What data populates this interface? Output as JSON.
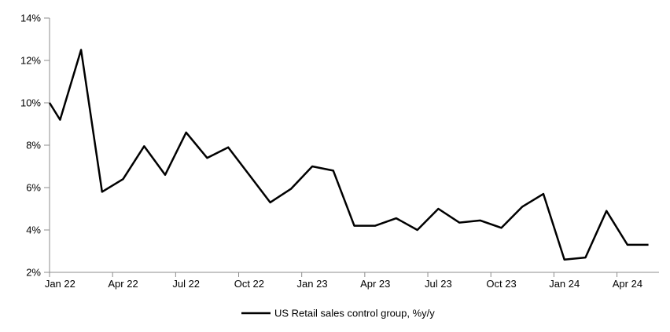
{
  "chart_data": {
    "type": "line",
    "title": "",
    "legend_position": "bottom-center",
    "grid": false,
    "axis_color": "#8c8c8c",
    "text_color": "#000000",
    "ylim": [
      2,
      14
    ],
    "ytick_step": 2,
    "ytick_labels": [
      "2%",
      "4%",
      "6%",
      "8%",
      "10%",
      "12%",
      "14%"
    ],
    "xtick_labels": [
      "Jan 22",
      "Apr 22",
      "Jul 22",
      "Oct 22",
      "Jan 23",
      "Apr 23",
      "Jul 23",
      "Oct 23",
      "Jan 24",
      "Apr 24"
    ],
    "xtick_every_months": 3,
    "x": [
      "Jan 22",
      "Feb 22",
      "Mar 22",
      "Apr 22",
      "May 22",
      "Jun 22",
      "Jul 22",
      "Aug 22",
      "Sep 22",
      "Oct 22",
      "Nov 22",
      "Dec 22",
      "Jan 23",
      "Feb 23",
      "Mar 23",
      "Apr 23",
      "May 23",
      "Jun 23",
      "Jul 23",
      "Aug 23",
      "Sep 23",
      "Oct 23",
      "Nov 23",
      "Dec 23",
      "Jan 24",
      "Feb 24",
      "Mar 24",
      "Apr 24",
      "May 24"
    ],
    "axis_intercept_value": 10.0,
    "series": [
      {
        "name": "US Retail sales control group, %y/y",
        "color": "#000000",
        "values": [
          9.2,
          12.5,
          5.8,
          6.4,
          7.95,
          6.6,
          8.6,
          7.4,
          7.9,
          6.6,
          5.3,
          5.95,
          7.0,
          6.8,
          4.2,
          4.2,
          4.55,
          4.0,
          5.0,
          4.35,
          4.45,
          4.1,
          5.1,
          5.7,
          2.6,
          2.7,
          4.9,
          3.3,
          3.3
        ]
      }
    ]
  }
}
